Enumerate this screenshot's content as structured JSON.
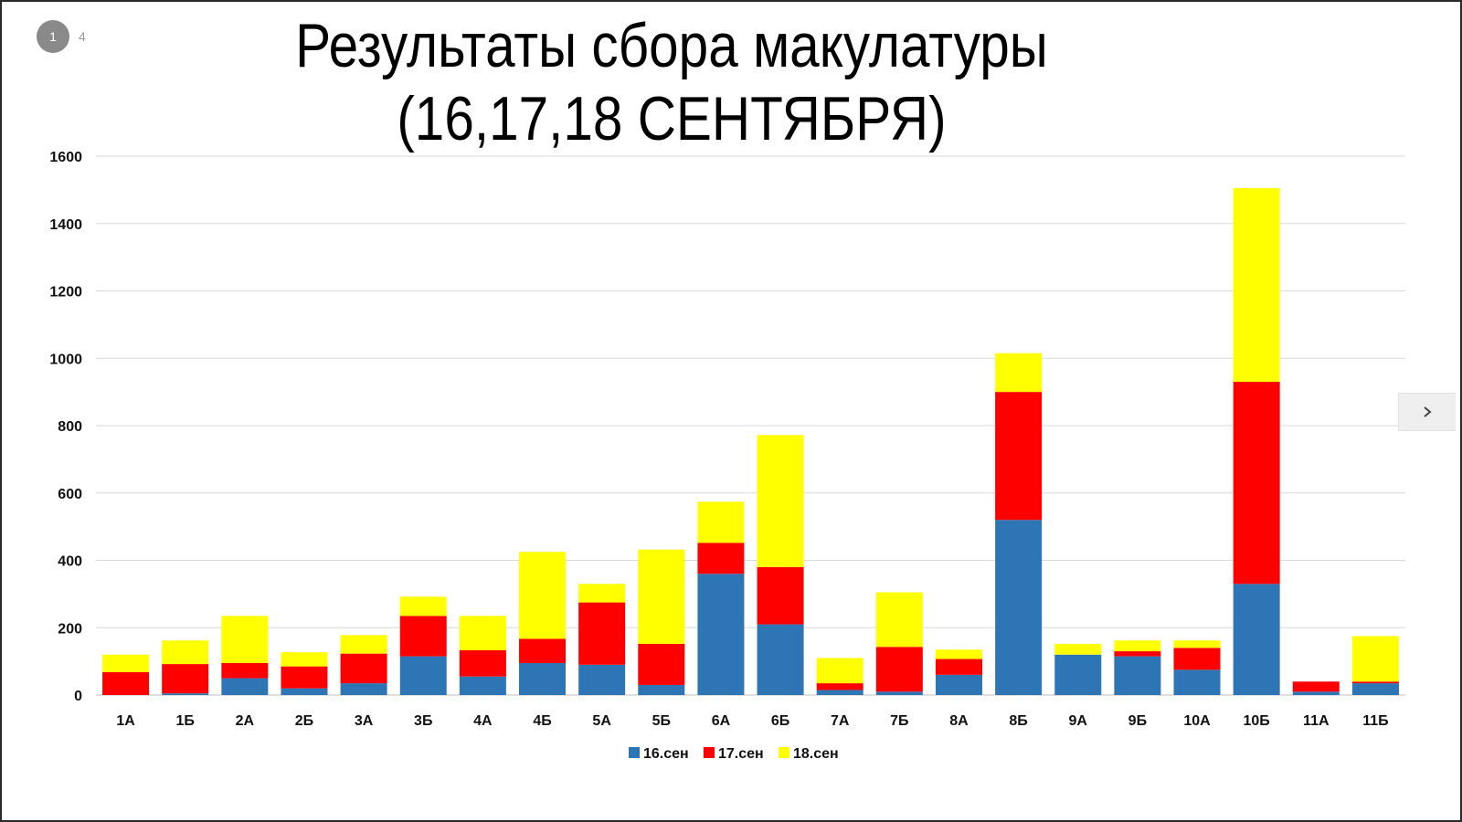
{
  "page_indicator": {
    "current": "1",
    "total": "4"
  },
  "title_line1": "Результаты сбора макулатуры",
  "title_line2": "(16,17,18 СЕНТЯБРЯ)",
  "navigation": {
    "next_icon": "chevron-right-icon"
  },
  "chart_data": {
    "type": "bar",
    "stacked": true,
    "title": "Результаты сбора макулатуры (16,17,18 СЕНТЯБРЯ)",
    "categories": [
      "1А",
      "1Б",
      "2А",
      "2Б",
      "3А",
      "3Б",
      "4А",
      "4Б",
      "5А",
      "5Б",
      "6А",
      "6Б",
      "7А",
      "7Б",
      "8А",
      "8Б",
      "9А",
      "9Б",
      "10А",
      "10Б",
      "11А",
      "11Б"
    ],
    "series": [
      {
        "name": "16.сен",
        "color": "#2e75b6",
        "values": [
          0,
          5,
          50,
          20,
          35,
          115,
          55,
          95,
          90,
          30,
          360,
          210,
          15,
          10,
          60,
          520,
          120,
          115,
          75,
          330,
          10,
          35
        ]
      },
      {
        "name": "17.сен",
        "color": "#ff0000",
        "values": [
          68,
          87,
          45,
          65,
          88,
          120,
          78,
          72,
          185,
          122,
          92,
          170,
          20,
          133,
          47,
          380,
          0,
          15,
          65,
          600,
          30,
          5
        ]
      },
      {
        "name": "18.сен",
        "color": "#ffff00",
        "values": [
          52,
          70,
          140,
          42,
          55,
          57,
          102,
          258,
          55,
          280,
          122,
          392,
          75,
          162,
          28,
          115,
          32,
          32,
          22,
          575,
          0,
          135
        ]
      }
    ],
    "ylim": [
      0,
      1600
    ],
    "yticks": [
      0,
      200,
      400,
      600,
      800,
      1000,
      1200,
      1400,
      1600
    ],
    "grid": true,
    "legend": "bottom"
  }
}
